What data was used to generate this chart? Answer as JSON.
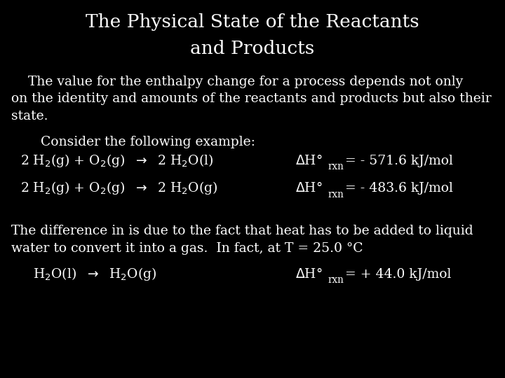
{
  "background_color": "#000000",
  "text_color": "#ffffff",
  "title_line1": "The Physical State of the Reactants",
  "title_line2": "and Products",
  "title_fontsize": 19,
  "body_fontsize": 13.5,
  "figsize": [
    7.2,
    5.4
  ],
  "dpi": 100,
  "para1": "    The value for the enthalpy change for a process depends not only\non the identity and amounts of the reactants and products but also their\nstate.",
  "consider": "Consider the following example:",
  "eq1_left": "2 H$_2$(g) + O$_2$(g)  $\\rightarrow$  2 H$_2$O(l)",
  "eq2_left": "2 H$_2$(g) + O$_2$(g)  $\\rightarrow$  2 H$_2$O(g)",
  "eq3_left": "H$_2$O(l)  $\\rightarrow$  H$_2$O(g)",
  "dH1": "= - 571.6 kJ/mol",
  "dH2": "= - 483.6 kJ/mol",
  "dH3": "= + 44.0 kJ/mol",
  "para2": "The difference in is due to the fact that heat has to be added to liquid\nwater to convert it into a gas.  In fact, at T = 25.0 °C"
}
